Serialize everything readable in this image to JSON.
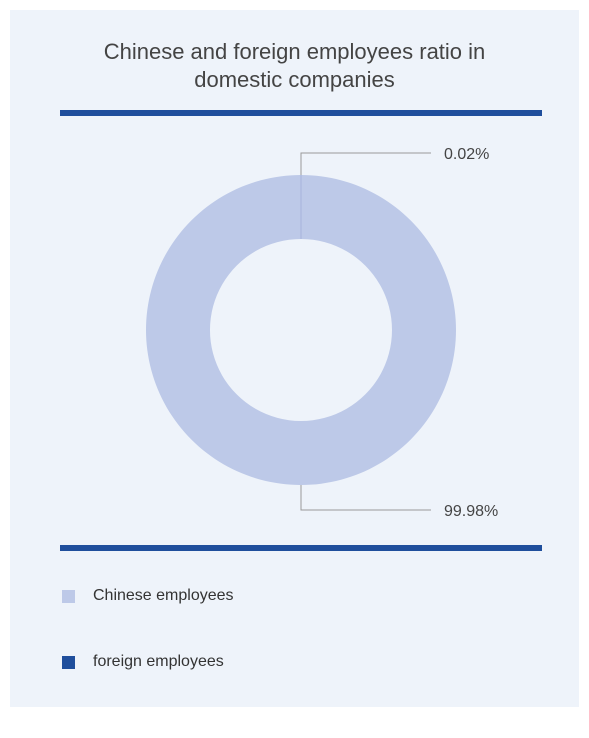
{
  "title_line1": "Chinese and foreign employees ratio in",
  "title_line2": "domestic companies",
  "colors": {
    "chinese": "#bdc9e8",
    "foreign": "#1f4e9c",
    "leader": "#999999",
    "label": "#444444"
  },
  "chart_data": {
    "type": "pie",
    "donut": true,
    "title": "Chinese and foreign employees ratio in domestic companies",
    "slices": [
      {
        "name": "foreign employees",
        "value": 0.02,
        "label": "0.02%"
      },
      {
        "name": "Chinese employees",
        "value": 99.98,
        "label": "99.98%"
      }
    ],
    "legend": [
      "Chinese employees",
      "foreign employees"
    ],
    "legend_position": "bottom"
  }
}
